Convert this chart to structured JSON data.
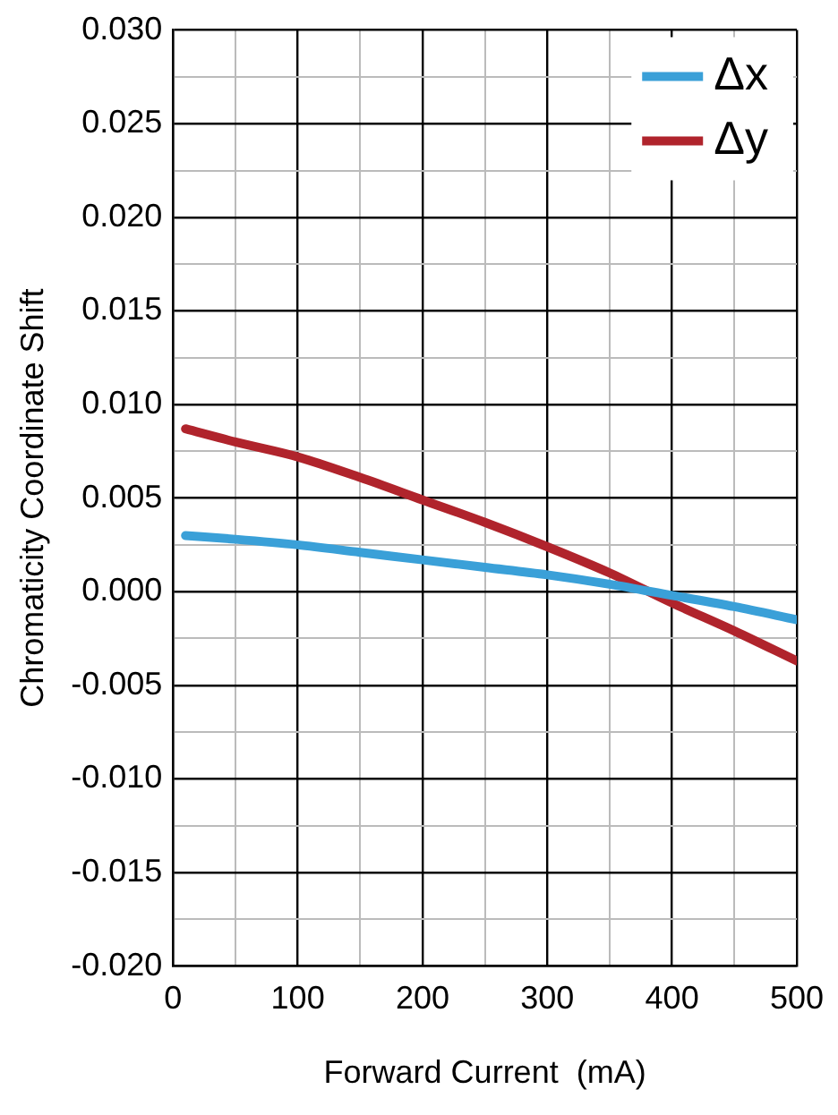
{
  "chart_data": {
    "type": "line",
    "xlabel": "Forward Current  (mA)",
    "ylabel": "Chromaticity Coordinate Shift",
    "x": [
      10,
      50,
      100,
      150,
      200,
      250,
      300,
      350,
      400,
      450,
      500
    ],
    "series": [
      {
        "name": "Δx",
        "color": "#3aa0d8",
        "values": [
          0.003,
          0.0028,
          0.0025,
          0.0021,
          0.0017,
          0.0013,
          0.0009,
          0.0004,
          -0.0002,
          -0.0008,
          -0.0015
        ]
      },
      {
        "name": "Δy",
        "color": "#b0242c",
        "values": [
          0.0087,
          0.008,
          0.0072,
          0.0061,
          0.0049,
          0.0037,
          0.0024,
          0.001,
          -0.0006,
          -0.0021,
          -0.0037
        ]
      }
    ],
    "xlim": [
      0,
      500
    ],
    "xticks": [
      0,
      {
        "value": 50,
        "label": null
      },
      100,
      {
        "value": 150,
        "label": null
      },
      200,
      {
        "value": 250,
        "label": null
      },
      300,
      {
        "value": 350,
        "label": null
      },
      400,
      {
        "value": 450,
        "label": null
      },
      500
    ],
    "ylim": [
      -0.02,
      0.03
    ],
    "yticks": [
      {
        "value": -0.02,
        "label": "-0.020"
      },
      {
        "value": -0.0175,
        "label": null
      },
      {
        "value": -0.015,
        "label": "-0.015"
      },
      {
        "value": -0.0125,
        "label": null
      },
      {
        "value": -0.01,
        "label": "-0.010"
      },
      {
        "value": -0.0075,
        "label": null
      },
      {
        "value": -0.005,
        "label": "-0.005"
      },
      {
        "value": -0.0025,
        "label": null
      },
      {
        "value": 0,
        "label": "0.000"
      },
      {
        "value": 0.0025,
        "label": null
      },
      {
        "value": 0.005,
        "label": "0.005"
      },
      {
        "value": 0.0075,
        "label": null
      },
      {
        "value": 0.01,
        "label": "0.010"
      },
      {
        "value": 0.0125,
        "label": null
      },
      {
        "value": 0.015,
        "label": "0.015"
      },
      {
        "value": 0.0175,
        "label": null
      },
      {
        "value": 0.02,
        "label": "0.020"
      },
      {
        "value": 0.0225,
        "label": null
      },
      {
        "value": 0.025,
        "label": "0.025"
      },
      {
        "value": 0.0275,
        "label": null
      },
      {
        "value": 0.03,
        "label": "0.030"
      }
    ],
    "grid": true,
    "legend": "top right",
    "marker": "none",
    "line_style": "solid"
  }
}
